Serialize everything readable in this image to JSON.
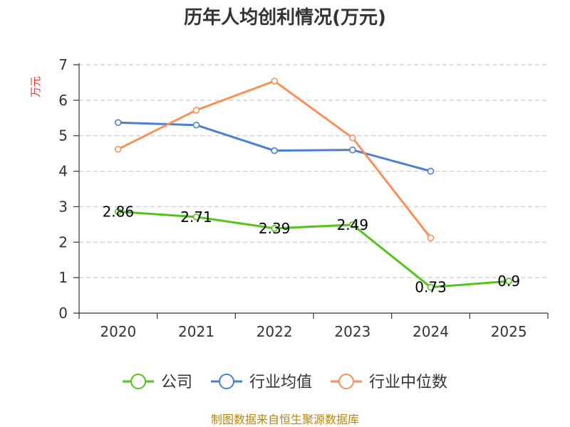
{
  "chart_data": {
    "type": "line",
    "title": "历年人均创利情况(万元)",
    "ylabel": "万元",
    "xlabel": "",
    "categories": [
      "2020",
      "2021",
      "2022",
      "2023",
      "2024",
      "2025"
    ],
    "ylim": [
      0,
      7
    ],
    "yticks": [
      0,
      1,
      2,
      3,
      4,
      5,
      6,
      7
    ],
    "grid": true,
    "legend_position": "bottom-center",
    "series": [
      {
        "name": "公司",
        "color": "#52c41a",
        "show_labels": true,
        "values": [
          2.86,
          2.71,
          2.39,
          2.49,
          0.73,
          0.9
        ]
      },
      {
        "name": "行业均值",
        "color": "#4a7fd6",
        "show_labels": false,
        "values": [
          5.37,
          5.3,
          4.58,
          4.6,
          4.0,
          null
        ]
      },
      {
        "name": "行业中位数",
        "color": "#f79059",
        "show_labels": false,
        "values": [
          4.62,
          5.72,
          6.54,
          4.94,
          2.12,
          null
        ]
      }
    ],
    "source": "制图数据来自恒生聚源数据库"
  }
}
